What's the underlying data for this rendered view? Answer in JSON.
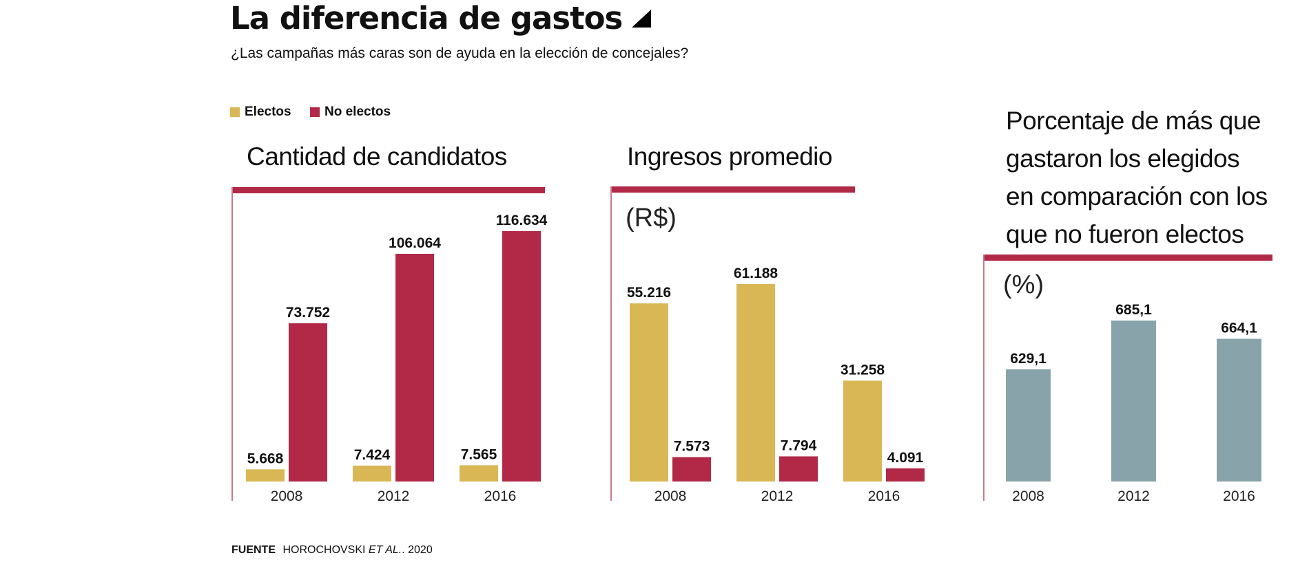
{
  "header": {
    "title": "La diferencia de gastos",
    "subtitle": "¿Las campañas más caras son de ayuda en la elección de concejales?"
  },
  "legend": [
    {
      "label": "Electos",
      "color": "#D9B755"
    },
    {
      "label": "No electos",
      "color": "#B22947"
    }
  ],
  "colors": {
    "electos": "#D9B755",
    "no_electos": "#B22947",
    "porcentaje": "#88A4AA",
    "rule": "#B22947"
  },
  "panels": [
    {
      "title": "Cantidad de candidatos",
      "unit": ""
    },
    {
      "title": "Ingresos promedio",
      "unit": "(R$)"
    },
    {
      "title_lines": [
        "Porcentaje de más que",
        "gastaron los elegidos",
        "en comparación con los",
        "que no fueron electos"
      ],
      "unit": "(%)"
    }
  ],
  "footer": {
    "label": "FUENTE",
    "source": "HOROCHOVSKI",
    "italic": "ET AL.",
    "year": "2020"
  },
  "chart_data": [
    {
      "type": "bar",
      "title": "Cantidad de candidatos",
      "categories": [
        "2008",
        "2012",
        "2016"
      ],
      "series": [
        {
          "name": "Electos",
          "values": [
            5668,
            7424,
            7565
          ],
          "labels": [
            "5.668",
            "7.424",
            "7.565"
          ]
        },
        {
          "name": "No electos",
          "values": [
            73752,
            106064,
            116634
          ],
          "labels": [
            "73.752",
            "106.064",
            "116.634"
          ]
        }
      ],
      "ylim": [
        0,
        116634
      ],
      "xlabel": "",
      "ylabel": "",
      "grid": false,
      "legend": "top-left"
    },
    {
      "type": "bar",
      "title": "Ingresos promedio",
      "unit": "(R$)",
      "categories": [
        "2008",
        "2012",
        "2016"
      ],
      "series": [
        {
          "name": "Electos",
          "values": [
            55216,
            61188,
            31258
          ],
          "labels": [
            "55.216",
            "61.188",
            "31.258"
          ]
        },
        {
          "name": "No electos",
          "values": [
            7573,
            7794,
            4091
          ],
          "labels": [
            "7.573",
            "7.794",
            "4.091"
          ]
        }
      ],
      "ylim": [
        0,
        61188
      ],
      "xlabel": "",
      "ylabel": "R$",
      "grid": false
    },
    {
      "type": "bar",
      "title": "Porcentaje de más que gastaron los elegidos en comparación con los que no fueron electos",
      "unit": "(%)",
      "categories": [
        "2008",
        "2012",
        "2016"
      ],
      "series": [
        {
          "name": "Porcentaje",
          "values": [
            629.1,
            685.1,
            664.1
          ],
          "labels": [
            "629,1",
            "685,1",
            "664,1"
          ]
        }
      ],
      "ylim": [
        500,
        685.1
      ],
      "xlabel": "",
      "ylabel": "%",
      "grid": false
    }
  ]
}
